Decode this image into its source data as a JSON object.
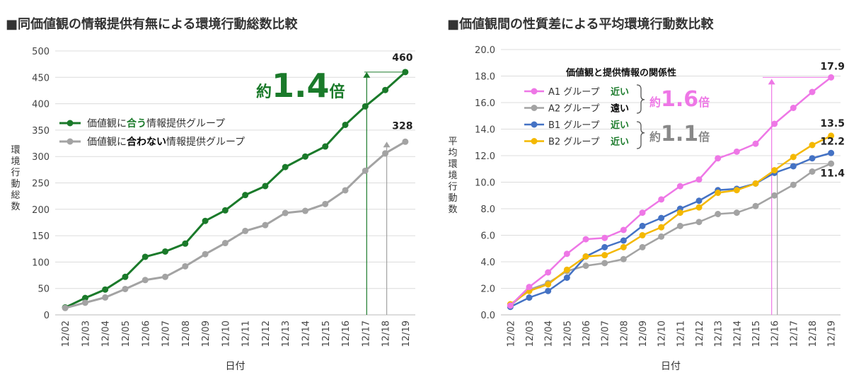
{
  "charts": {
    "left": {
      "panel_title": "■同価値観の情報提供有無による環境行動総数比較"
    },
    "right": {
      "panel_title": "■価値観間の性質差による平均環境行動数比較"
    }
  },
  "colors": {
    "green": "#1a7a2a",
    "gray": "#a3a3a3",
    "pink": "#ee77e6",
    "blue": "#4472c4",
    "yellow": "#f4b800",
    "grid": "#dcdcdc"
  },
  "chart_data": [
    {
      "type": "line",
      "title": "■同価値観の情報提供有無による環境行動総数比較",
      "xlabel": "日付",
      "ylabel": "環境行動総数",
      "ylim": [
        0,
        500
      ],
      "yticks": [
        "0",
        "50",
        "100",
        "150",
        "200",
        "250",
        "300",
        "350",
        "400",
        "450",
        "500"
      ],
      "categories": [
        "12/02",
        "12/03",
        "12/04",
        "12/05",
        "12/06",
        "12/07",
        "12/08",
        "12/09",
        "12/10",
        "12/11",
        "12/12",
        "12/13",
        "12/14",
        "12/15",
        "12/16",
        "12/17",
        "12/18",
        "12/19"
      ],
      "series": [
        {
          "name_parts": [
            "価値観に",
            "合う",
            "情報提供グループ"
          ],
          "values": [
            14,
            32,
            48,
            72,
            110,
            120,
            135,
            178,
            198,
            227,
            244,
            280,
            300,
            319,
            360,
            395,
            426,
            460
          ]
        },
        {
          "name_parts": [
            "価値観に",
            "合わない",
            "情報提供グループ"
          ],
          "values": [
            13,
            23,
            33,
            49,
            66,
            72,
            92,
            115,
            136,
            159,
            170,
            193,
            197,
            210,
            236,
            273,
            306,
            328
          ]
        }
      ],
      "end_labels": [
        "460",
        "328"
      ],
      "annotation": {
        "prefix": "約",
        "value": "1.4",
        "suffix": "倍"
      }
    },
    {
      "type": "line",
      "title": "■価値観間の性質差による平均環境行動数比較",
      "xlabel": "日付",
      "ylabel": "平均環境行動数",
      "ylim": [
        0,
        20
      ],
      "yticks": [
        "0.0",
        "2.0",
        "4.0",
        "6.0",
        "8.0",
        "10.0",
        "12.0",
        "14.0",
        "16.0",
        "18.0",
        "20.0"
      ],
      "categories": [
        "12/02",
        "12/03",
        "12/04",
        "12/05",
        "12/06",
        "12/07",
        "12/08",
        "12/09",
        "12/10",
        "12/11",
        "12/12",
        "12/13",
        "12/14",
        "12/15",
        "12/16",
        "12/17",
        "12/18",
        "12/19"
      ],
      "legend_title": "価値観と提供情報の関係性",
      "series": [
        {
          "name": "A1 グループ",
          "relation": "近い",
          "values": [
            0.7,
            2.1,
            3.2,
            4.6,
            5.7,
            5.8,
            6.4,
            7.7,
            8.7,
            9.7,
            10.2,
            11.8,
            12.3,
            12.9,
            14.4,
            15.6,
            16.8,
            17.9
          ]
        },
        {
          "name": "A2 グループ",
          "relation": "遠い",
          "values": [
            0.7,
            1.9,
            2.4,
            3.3,
            3.7,
            3.9,
            4.2,
            5.1,
            5.9,
            6.7,
            7.0,
            7.6,
            7.7,
            8.2,
            9.0,
            9.8,
            10.8,
            11.4
          ]
        },
        {
          "name": "B1 グループ",
          "relation": "近い",
          "values": [
            0.6,
            1.3,
            1.8,
            2.8,
            4.4,
            5.1,
            5.6,
            6.7,
            7.3,
            8.0,
            8.6,
            9.4,
            9.5,
            9.9,
            10.7,
            11.2,
            11.8,
            12.2
          ]
        },
        {
          "name": "B2 グループ",
          "relation": "近い",
          "values": [
            0.8,
            1.8,
            2.3,
            3.4,
            4.4,
            4.5,
            5.1,
            6.0,
            6.6,
            7.7,
            8.1,
            9.2,
            9.4,
            9.9,
            10.9,
            11.9,
            12.8,
            13.5
          ]
        }
      ],
      "end_labels": [
        "17.9",
        "13.5",
        "12.2",
        "11.4"
      ],
      "annotations": [
        {
          "prefix": "約",
          "value": "1.6",
          "suffix": "倍"
        },
        {
          "prefix": "約",
          "value": "1.1",
          "suffix": "倍"
        }
      ]
    }
  ]
}
